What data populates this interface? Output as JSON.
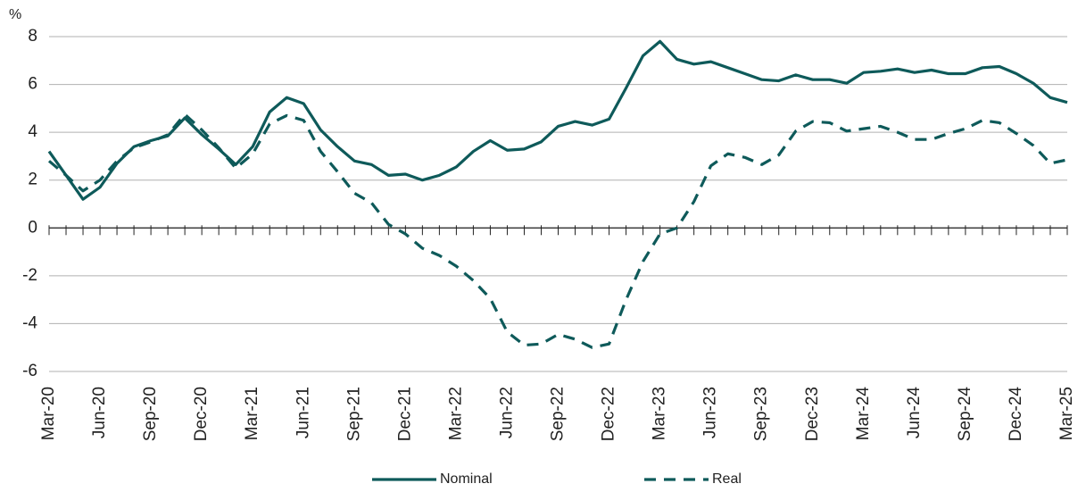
{
  "chart_data": {
    "type": "line",
    "ylabel": "%",
    "categories": [
      "Mar-20",
      null,
      null,
      "Jun-20",
      null,
      null,
      "Sep-20",
      null,
      null,
      "Dec-20",
      null,
      null,
      "Mar-21",
      null,
      null,
      "Jun-21",
      null,
      null,
      "Sep-21",
      null,
      null,
      "Dec-21",
      null,
      null,
      "Mar-22",
      null,
      null,
      "Jun-22",
      null,
      null,
      "Sep-22",
      null,
      null,
      "Dec-22",
      null,
      null,
      "Mar-23",
      null,
      null,
      "Jun-23",
      null,
      null,
      "Sep-23",
      null,
      null,
      "Dec-23",
      null,
      null,
      "Mar-24",
      null,
      null,
      "Jun-24",
      null,
      null,
      "Sep-24",
      null,
      null,
      "Dec-24",
      null,
      null,
      "Mar-25"
    ],
    "series": [
      {
        "name": "Nominal",
        "color": "#0e5a5a",
        "style": "solid",
        "values": [
          3.2,
          2.2,
          1.2,
          1.7,
          2.7,
          3.4,
          3.65,
          3.85,
          4.6,
          3.9,
          3.3,
          2.65,
          3.4,
          4.85,
          5.45,
          5.2,
          4.1,
          3.4,
          2.8,
          2.65,
          2.2,
          2.25,
          2.0,
          2.2,
          2.55,
          3.2,
          3.65,
          3.25,
          3.3,
          3.6,
          4.25,
          4.45,
          4.3,
          4.55,
          5.85,
          7.2,
          7.8,
          7.05,
          6.85,
          6.95,
          6.7,
          6.45,
          6.2,
          6.15,
          6.4,
          6.2,
          6.2,
          6.05,
          6.5,
          6.55,
          6.65,
          6.5,
          6.6,
          6.45,
          6.45,
          6.7,
          6.75,
          6.45,
          6.05,
          5.45,
          5.25
        ]
      },
      {
        "name": "Real",
        "color": "#0e5a5a",
        "style": "dashed",
        "values": [
          2.8,
          2.2,
          1.55,
          2.0,
          2.8,
          3.35,
          3.6,
          3.9,
          4.75,
          4.1,
          3.35,
          2.5,
          3.1,
          4.35,
          4.7,
          4.5,
          3.2,
          2.35,
          1.45,
          1.05,
          0.15,
          -0.25,
          -0.85,
          -1.15,
          -1.6,
          -2.2,
          -2.95,
          -4.35,
          -4.9,
          -4.85,
          -4.45,
          -4.65,
          -5.0,
          -4.85,
          -3.0,
          -1.4,
          -0.25,
          0.0,
          1.1,
          2.6,
          3.1,
          2.95,
          2.65,
          3.05,
          4.05,
          4.45,
          4.4,
          4.05,
          4.15,
          4.25,
          4.0,
          3.7,
          3.7,
          3.95,
          4.15,
          4.5,
          4.4,
          3.95,
          3.45,
          2.7,
          2.85
        ]
      }
    ],
    "ylim": [
      -6,
      8
    ],
    "yticks": [
      -6,
      -4,
      -2,
      0,
      2,
      4,
      6,
      8
    ],
    "grid": true,
    "legend": "bottom"
  }
}
